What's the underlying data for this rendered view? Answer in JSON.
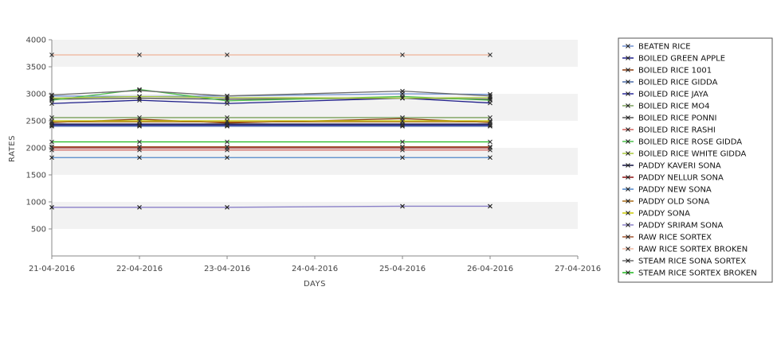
{
  "chart_data": {
    "type": "line",
    "xlabel": "DAYS",
    "ylabel": "RATES",
    "x_ticks": [
      "21-04-2016",
      "22-04-2016",
      "23-04-2016",
      "24-04-2016",
      "25-04-2016",
      "26-04-2016",
      "27-04-2016"
    ],
    "ylim": [
      0,
      4000
    ],
    "y_ticks": [
      500,
      1000,
      1500,
      2000,
      2500,
      3000,
      3500,
      4000
    ],
    "grid": "alternating horizontal bands",
    "legend_position": "right",
    "x_dates": [
      "21-04-2016",
      "22-04-2016",
      "23-04-2016",
      "25-04-2016",
      "26-04-2016"
    ],
    "series": [
      {
        "name": "BEATEN RICE",
        "color": "#6f8fd0",
        "values": [
          2960,
          2950,
          2960,
          3000,
          2990
        ]
      },
      {
        "name": "BOILED GREEN APPLE",
        "color": "#1f1f8a",
        "values": [
          2820,
          2880,
          2820,
          2920,
          2830
        ]
      },
      {
        "name": "BOILED RICE 1001",
        "color": "#8b3a0e",
        "values": [
          2470,
          2530,
          2460,
          2540,
          2470
        ]
      },
      {
        "name": "BOILED RICE GIDDA",
        "color": "#4a6aa8",
        "values": [
          2400,
          2400,
          2400,
          2400,
          2400
        ]
      },
      {
        "name": "BOILED RICE JAYA",
        "color": "#2b2b9a",
        "values": [
          2420,
          2420,
          2420,
          2420,
          2420
        ]
      },
      {
        "name": "BOILED RICE MO4",
        "color": "#7aa05a",
        "values": [
          2560,
          2560,
          2560,
          2560,
          2560
        ]
      },
      {
        "name": "BOILED RICE PONNI",
        "color": "#555555",
        "values": [
          2900,
          2920,
          2900,
          2920,
          2900
        ]
      },
      {
        "name": "BOILED RICE RASHI",
        "color": "#d0605a",
        "values": [
          1960,
          1960,
          1960,
          1960,
          1960
        ]
      },
      {
        "name": "BOILED RICE ROSE GIDDA",
        "color": "#4cc04c",
        "values": [
          2880,
          3080,
          2870,
          2950,
          2880
        ]
      },
      {
        "name": "BOILED RICE WHITE GIDDA",
        "color": "#a8c83c",
        "values": [
          2920,
          2950,
          2930,
          2920,
          2930
        ]
      },
      {
        "name": "PADDY KAVERI SONA",
        "color": "#101040",
        "values": [
          2440,
          2440,
          2440,
          2440,
          2440
        ]
      },
      {
        "name": "PADDY NELLUR SONA",
        "color": "#8a1010",
        "values": [
          2000,
          2000,
          2000,
          2000,
          2000
        ]
      },
      {
        "name": "PADDY NEW SONA",
        "color": "#4f86c8",
        "values": [
          1820,
          1820,
          1820,
          1820,
          1820
        ]
      },
      {
        "name": "PADDY OLD SONA",
        "color": "#a86a18",
        "values": [
          2480,
          2480,
          2480,
          2480,
          2480
        ]
      },
      {
        "name": "PADDY SONA",
        "color": "#c8c800",
        "values": [
          2500,
          2500,
          2500,
          2500,
          2500
        ]
      },
      {
        "name": "PADDY SRIRAM SONA",
        "color": "#8a80c8",
        "values": [
          900,
          900,
          900,
          920,
          920
        ]
      },
      {
        "name": "RAW RICE SORTEX",
        "color": "#a0522d",
        "values": [
          2020,
          2020,
          2020,
          2020,
          2020
        ]
      },
      {
        "name": "RAW RICE SORTEX BROKEN",
        "color": "#f0b8a0",
        "values": [
          3720,
          3720,
          3720,
          3720,
          3720
        ]
      },
      {
        "name": "STEAM RICE SONA SORTEX",
        "color": "#6a6a6a",
        "values": [
          2980,
          3060,
          2960,
          3050,
          2960
        ]
      },
      {
        "name": "STEAM RICE SORTEX BROKEN",
        "color": "#1db81d",
        "values": [
          2110,
          2110,
          2110,
          2110,
          2110
        ]
      }
    ]
  }
}
